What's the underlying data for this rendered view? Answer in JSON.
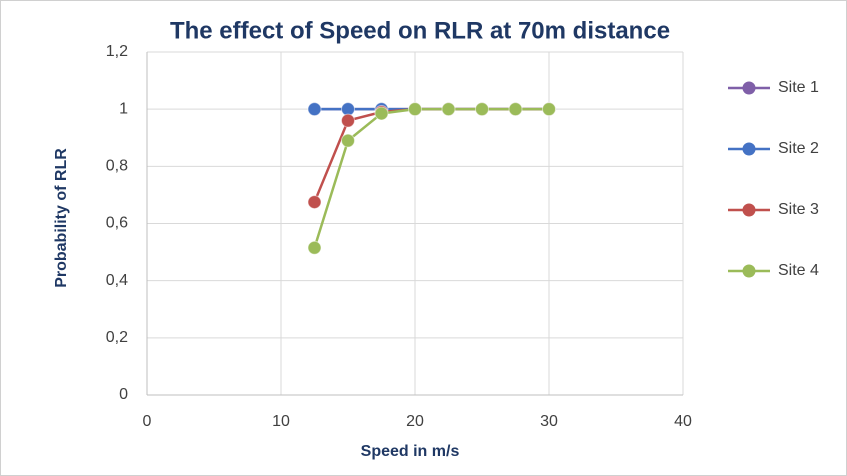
{
  "chart_data": {
    "type": "line",
    "title": "The effect of Speed on RLR at 70m distance",
    "xlabel": "Speed in m/s",
    "ylabel": "Probability of RLR",
    "x": [
      12.5,
      15,
      17.5,
      20,
      22.5,
      25,
      27.5,
      30
    ],
    "series": [
      {
        "name": "Site 1",
        "color": "#7f5fa8",
        "values": [
          1,
          1,
          1,
          1,
          1,
          1,
          1,
          1
        ]
      },
      {
        "name": "Site 2",
        "color": "#4472c4",
        "values": [
          1,
          1,
          1,
          1,
          1,
          1,
          1,
          1
        ]
      },
      {
        "name": "Site 3",
        "color": "#c0504d",
        "values": [
          0.675,
          0.96,
          0.99,
          1,
          1,
          1,
          1,
          1
        ]
      },
      {
        "name": "Site 4",
        "color": "#9bbb59",
        "values": [
          0.515,
          0.89,
          0.985,
          1,
          1,
          1,
          1,
          1
        ]
      }
    ],
    "xlim": [
      0,
      40
    ],
    "xticks": [
      0,
      10,
      20,
      30,
      40
    ],
    "ylim": [
      0,
      1.2
    ],
    "yticks": [
      0,
      {
        "value": 0.2,
        "label": "0,2"
      },
      {
        "value": 0.4,
        "label": "0,4"
      },
      {
        "value": 0.6,
        "label": "0,6"
      },
      {
        "value": 0.8,
        "label": "0,8"
      },
      1,
      {
        "value": 1.2,
        "label": "1,2"
      }
    ],
    "grid": true,
    "legend": "right"
  }
}
